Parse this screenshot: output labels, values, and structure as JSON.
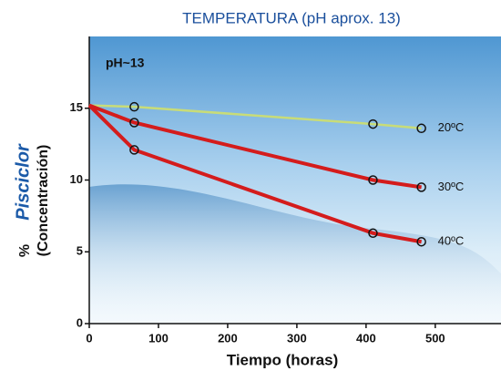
{
  "chart_data": {
    "type": "line",
    "title": "TEMPERATURA (pH aprox. 13)",
    "annotation": "pH~13",
    "brand": "Pisciclor",
    "ylabel_unit": "%",
    "ylabel": "(Concentración)",
    "xlabel": "Tiempo (horas)",
    "x": [
      0,
      65,
      410,
      480
    ],
    "series": [
      {
        "name": "20ºC",
        "color": "#c8dc78",
        "values": [
          15.2,
          15.1,
          13.9,
          13.6
        ]
      },
      {
        "name": "30ºC",
        "color": "#d41c1c",
        "values": [
          15.2,
          14.0,
          10.0,
          9.5
        ]
      },
      {
        "name": "40ºC",
        "color": "#d41c1c",
        "values": [
          15.2,
          12.1,
          6.3,
          5.7
        ]
      }
    ],
    "xlim": [
      0,
      595
    ],
    "ylim": [
      0,
      20
    ],
    "xticks": [
      0,
      100,
      200,
      300,
      400,
      500
    ],
    "yticks": [
      0,
      5,
      10,
      15
    ]
  }
}
